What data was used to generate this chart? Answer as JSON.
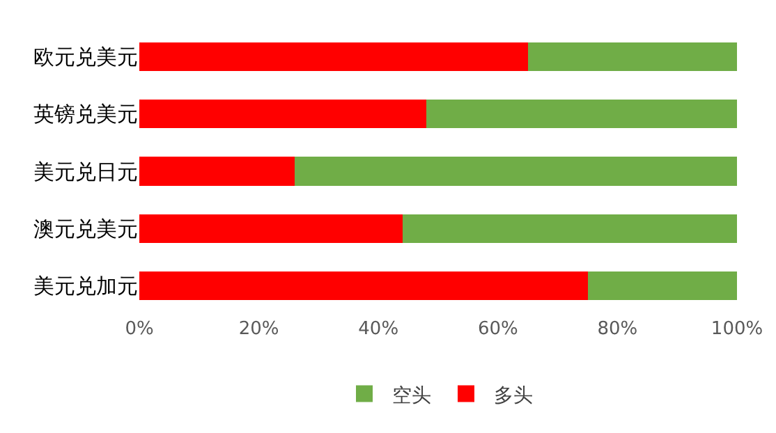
{
  "chart_data": {
    "type": "bar",
    "orientation": "horizontal",
    "stacked": true,
    "categories": [
      "欧元兑美元",
      "英镑兑美元",
      "美元兑日元",
      "澳元兑美元",
      "美元兑加元"
    ],
    "series": [
      {
        "name": "多头",
        "color": "#ff0000",
        "values": [
          65,
          48,
          26,
          44,
          75
        ]
      },
      {
        "name": "空头",
        "color": "#70ad47",
        "values": [
          35,
          52,
          74,
          56,
          25
        ]
      }
    ],
    "xlim": [
      0,
      100
    ],
    "xticks": [
      {
        "value": 0,
        "label": "0%"
      },
      {
        "value": 20,
        "label": "20%"
      },
      {
        "value": 40,
        "label": "40%"
      },
      {
        "value": 60,
        "label": "60%"
      },
      {
        "value": 80,
        "label": "80%"
      },
      {
        "value": 100,
        "label": "100%"
      }
    ],
    "grid": false,
    "legend": "bottom"
  }
}
